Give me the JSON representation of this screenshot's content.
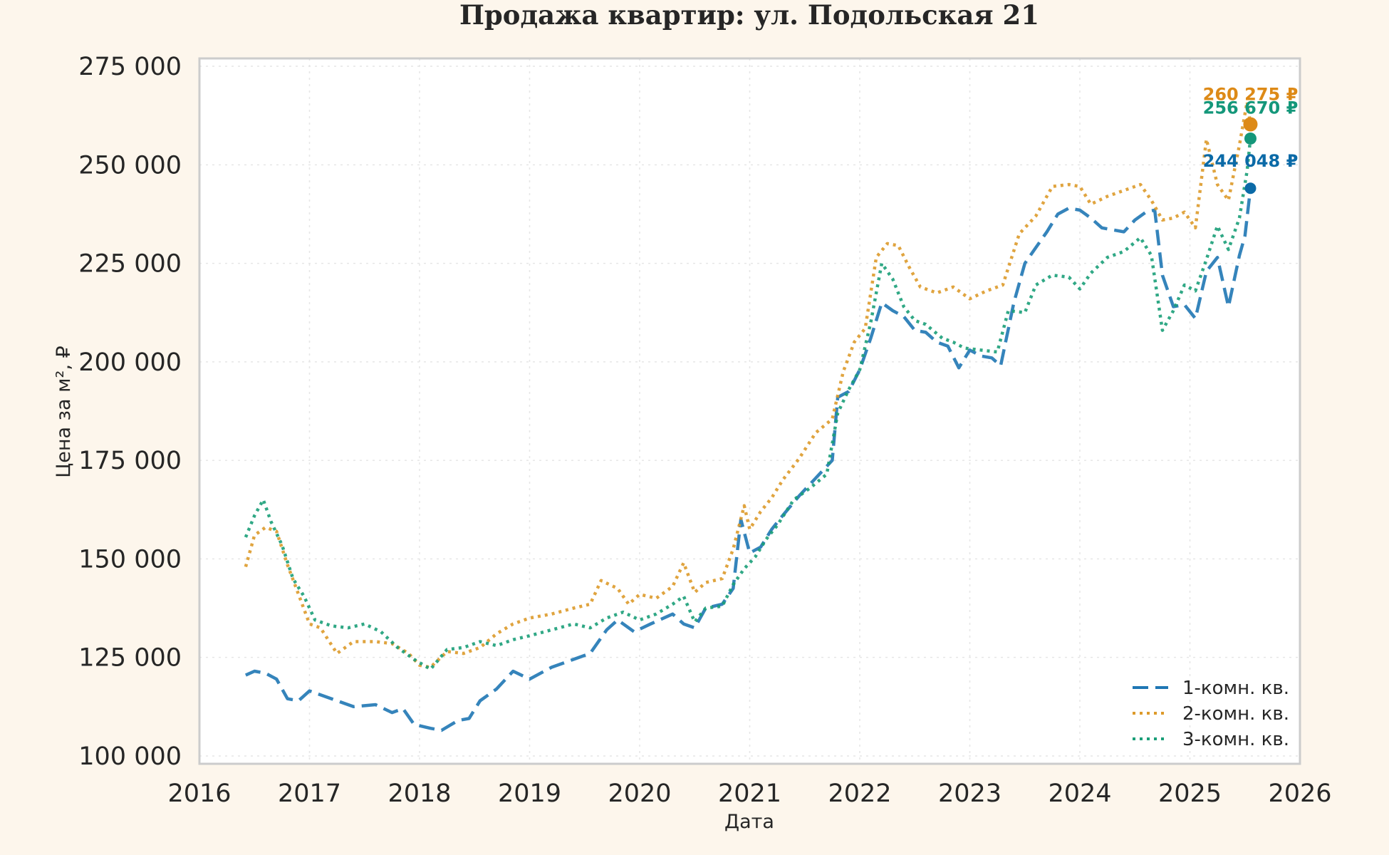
{
  "colors": {
    "background": "#fdf6ec",
    "plot_background": "#ffffff",
    "frame": "#cccccc",
    "series_1": "#1f77b4",
    "series_2": "#dd9a2a",
    "series_3": "#1a9e78",
    "end_1": "#0b6aa7",
    "end_2": "#dd8a17",
    "end_3": "#14977a"
  },
  "chart_data": {
    "type": "line",
    "title": "Продажа квартир: ул. Подольская 21",
    "xlabel": "Дата",
    "ylabel": "Цена за м², ₽",
    "xlim": [
      2016.0,
      2026.0
    ],
    "ylim": [
      98000,
      277000
    ],
    "x_ticks": [
      2016,
      2017,
      2018,
      2019,
      2020,
      2021,
      2022,
      2023,
      2024,
      2025,
      2026
    ],
    "x_tick_labels": [
      "2016",
      "2017",
      "2018",
      "2019",
      "2020",
      "2021",
      "2022",
      "2023",
      "2024",
      "2025",
      "2026"
    ],
    "y_ticks": [
      100000,
      125000,
      150000,
      175000,
      200000,
      225000,
      250000,
      275000
    ],
    "y_tick_labels": [
      "100 000",
      "125 000",
      "150 000",
      "175 000",
      "200 000",
      "225 000",
      "250 000",
      "275 000"
    ],
    "grid": true,
    "legend_position": "bottom-right",
    "series": [
      {
        "name": "1-комн. кв.",
        "style": "dashed",
        "points": [
          [
            2016.42,
            120500
          ],
          [
            2016.5,
            121500
          ],
          [
            2016.6,
            121000
          ],
          [
            2016.7,
            119500
          ],
          [
            2016.8,
            114500
          ],
          [
            2016.9,
            114000
          ],
          [
            2017.0,
            116500
          ],
          [
            2017.2,
            114500
          ],
          [
            2017.4,
            112500
          ],
          [
            2017.6,
            113000
          ],
          [
            2017.75,
            111000
          ],
          [
            2017.85,
            112000
          ],
          [
            2017.95,
            108000
          ],
          [
            2018.1,
            107000
          ],
          [
            2018.2,
            106500
          ],
          [
            2018.35,
            109000
          ],
          [
            2018.45,
            109500
          ],
          [
            2018.55,
            114000
          ],
          [
            2018.7,
            117000
          ],
          [
            2018.85,
            121500
          ],
          [
            2019.0,
            119500
          ],
          [
            2019.2,
            122500
          ],
          [
            2019.4,
            124500
          ],
          [
            2019.55,
            126000
          ],
          [
            2019.7,
            132000
          ],
          [
            2019.8,
            134500
          ],
          [
            2019.95,
            131500
          ],
          [
            2020.1,
            133500
          ],
          [
            2020.3,
            136000
          ],
          [
            2020.4,
            133500
          ],
          [
            2020.5,
            132500
          ],
          [
            2020.6,
            137500
          ],
          [
            2020.75,
            138500
          ],
          [
            2020.85,
            142500
          ],
          [
            2020.92,
            160000
          ],
          [
            2021.0,
            151500
          ],
          [
            2021.1,
            153000
          ],
          [
            2021.2,
            157500
          ],
          [
            2021.3,
            161000
          ],
          [
            2021.45,
            166000
          ],
          [
            2021.6,
            170500
          ],
          [
            2021.75,
            175000
          ],
          [
            2021.8,
            191000
          ],
          [
            2021.9,
            192500
          ],
          [
            2022.0,
            198000
          ],
          [
            2022.1,
            206000
          ],
          [
            2022.2,
            215000
          ],
          [
            2022.3,
            213000
          ],
          [
            2022.4,
            211500
          ],
          [
            2022.5,
            208000
          ],
          [
            2022.6,
            207500
          ],
          [
            2022.7,
            205000
          ],
          [
            2022.8,
            204000
          ],
          [
            2022.9,
            198500
          ],
          [
            2023.0,
            203000
          ],
          [
            2023.1,
            201500
          ],
          [
            2023.2,
            201000
          ],
          [
            2023.28,
            199000
          ],
          [
            2023.4,
            215000
          ],
          [
            2023.5,
            225000
          ],
          [
            2023.6,
            229000
          ],
          [
            2023.7,
            233000
          ],
          [
            2023.8,
            237500
          ],
          [
            2023.9,
            239000
          ],
          [
            2024.0,
            238500
          ],
          [
            2024.1,
            236500
          ],
          [
            2024.2,
            234000
          ],
          [
            2024.3,
            233500
          ],
          [
            2024.4,
            233000
          ],
          [
            2024.5,
            236000
          ],
          [
            2024.6,
            238000
          ],
          [
            2024.68,
            238500
          ],
          [
            2024.75,
            222000
          ],
          [
            2024.85,
            214000
          ],
          [
            2024.95,
            214500
          ],
          [
            2025.05,
            211000
          ],
          [
            2025.15,
            223000
          ],
          [
            2025.25,
            226500
          ],
          [
            2025.35,
            214000
          ],
          [
            2025.45,
            227000
          ],
          [
            2025.5,
            232000
          ],
          [
            2025.55,
            244048
          ]
        ]
      },
      {
        "name": "2-комн. кв.",
        "style": "dotted",
        "points": [
          [
            2016.42,
            148000
          ],
          [
            2016.5,
            156000
          ],
          [
            2016.6,
            158000
          ],
          [
            2016.7,
            157000
          ],
          [
            2016.8,
            148500
          ],
          [
            2016.9,
            141000
          ],
          [
            2017.0,
            133500
          ],
          [
            2017.1,
            132500
          ],
          [
            2017.25,
            126000
          ],
          [
            2017.4,
            129000
          ],
          [
            2017.6,
            129000
          ],
          [
            2017.75,
            128500
          ],
          [
            2017.9,
            126000
          ],
          [
            2018.0,
            123000
          ],
          [
            2018.1,
            122500
          ],
          [
            2018.25,
            126500
          ],
          [
            2018.4,
            126000
          ],
          [
            2018.55,
            127500
          ],
          [
            2018.7,
            131000
          ],
          [
            2018.85,
            133500
          ],
          [
            2019.0,
            135000
          ],
          [
            2019.2,
            136000
          ],
          [
            2019.4,
            137500
          ],
          [
            2019.55,
            138500
          ],
          [
            2019.65,
            144500
          ],
          [
            2019.8,
            142500
          ],
          [
            2019.9,
            138500
          ],
          [
            2020.0,
            141000
          ],
          [
            2020.15,
            140000
          ],
          [
            2020.3,
            143000
          ],
          [
            2020.4,
            149000
          ],
          [
            2020.5,
            141500
          ],
          [
            2020.6,
            144000
          ],
          [
            2020.75,
            145000
          ],
          [
            2020.85,
            152500
          ],
          [
            2020.95,
            163500
          ],
          [
            2021.0,
            157500
          ],
          [
            2021.1,
            162000
          ],
          [
            2021.2,
            165500
          ],
          [
            2021.3,
            170000
          ],
          [
            2021.45,
            175500
          ],
          [
            2021.6,
            182000
          ],
          [
            2021.75,
            185500
          ],
          [
            2021.85,
            197500
          ],
          [
            2021.95,
            205000
          ],
          [
            2022.05,
            208500
          ],
          [
            2022.15,
            226500
          ],
          [
            2022.25,
            230000
          ],
          [
            2022.35,
            229500
          ],
          [
            2022.45,
            224000
          ],
          [
            2022.55,
            219000
          ],
          [
            2022.7,
            217500
          ],
          [
            2022.85,
            219000
          ],
          [
            2023.0,
            216000
          ],
          [
            2023.15,
            218000
          ],
          [
            2023.3,
            219500
          ],
          [
            2023.45,
            232500
          ],
          [
            2023.6,
            237000
          ],
          [
            2023.75,
            244500
          ],
          [
            2023.9,
            245000
          ],
          [
            2024.0,
            244500
          ],
          [
            2024.1,
            240000
          ],
          [
            2024.25,
            242000
          ],
          [
            2024.4,
            243500
          ],
          [
            2024.55,
            245000
          ],
          [
            2024.65,
            241000
          ],
          [
            2024.75,
            236000
          ],
          [
            2024.85,
            236500
          ],
          [
            2024.95,
            238000
          ],
          [
            2025.05,
            234000
          ],
          [
            2025.15,
            256500
          ],
          [
            2025.25,
            245000
          ],
          [
            2025.35,
            241000
          ],
          [
            2025.45,
            255000
          ],
          [
            2025.52,
            266000
          ],
          [
            2025.55,
            260275
          ]
        ]
      },
      {
        "name": "3-комн. кв.",
        "style": "dotted",
        "points": [
          [
            2016.42,
            155500
          ],
          [
            2016.5,
            161000
          ],
          [
            2016.58,
            165000
          ],
          [
            2016.65,
            159500
          ],
          [
            2016.75,
            153500
          ],
          [
            2016.85,
            145000
          ],
          [
            2016.95,
            140500
          ],
          [
            2017.05,
            134500
          ],
          [
            2017.2,
            133000
          ],
          [
            2017.35,
            132500
          ],
          [
            2017.5,
            133500
          ],
          [
            2017.65,
            131500
          ],
          [
            2017.8,
            127500
          ],
          [
            2017.95,
            124500
          ],
          [
            2018.1,
            122000
          ],
          [
            2018.25,
            127000
          ],
          [
            2018.4,
            127500
          ],
          [
            2018.55,
            129000
          ],
          [
            2018.7,
            128000
          ],
          [
            2018.85,
            129500
          ],
          [
            2019.0,
            130500
          ],
          [
            2019.2,
            132000
          ],
          [
            2019.4,
            133500
          ],
          [
            2019.55,
            132500
          ],
          [
            2019.7,
            135000
          ],
          [
            2019.85,
            136500
          ],
          [
            2020.0,
            134500
          ],
          [
            2020.15,
            136000
          ],
          [
            2020.3,
            138500
          ],
          [
            2020.4,
            140500
          ],
          [
            2020.5,
            134000
          ],
          [
            2020.6,
            137500
          ],
          [
            2020.75,
            138000
          ],
          [
            2020.85,
            143500
          ],
          [
            2020.95,
            147500
          ],
          [
            2021.05,
            150500
          ],
          [
            2021.15,
            155000
          ],
          [
            2021.25,
            158500
          ],
          [
            2021.4,
            165000
          ],
          [
            2021.55,
            168000
          ],
          [
            2021.7,
            171500
          ],
          [
            2021.8,
            187000
          ],
          [
            2021.9,
            193000
          ],
          [
            2022.0,
            198000
          ],
          [
            2022.1,
            210000
          ],
          [
            2022.2,
            225000
          ],
          [
            2022.3,
            221000
          ],
          [
            2022.4,
            214000
          ],
          [
            2022.5,
            210500
          ],
          [
            2022.6,
            209500
          ],
          [
            2022.75,
            206000
          ],
          [
            2022.85,
            205000
          ],
          [
            2022.95,
            203500
          ],
          [
            2023.1,
            203000
          ],
          [
            2023.25,
            202500
          ],
          [
            2023.35,
            213000
          ],
          [
            2023.5,
            212500
          ],
          [
            2023.6,
            219500
          ],
          [
            2023.75,
            222000
          ],
          [
            2023.9,
            221500
          ],
          [
            2024.0,
            218500
          ],
          [
            2024.1,
            222500
          ],
          [
            2024.25,
            226500
          ],
          [
            2024.4,
            228000
          ],
          [
            2024.55,
            231500
          ],
          [
            2024.65,
            227000
          ],
          [
            2024.75,
            208000
          ],
          [
            2024.85,
            213000
          ],
          [
            2024.95,
            219500
          ],
          [
            2025.05,
            218000
          ],
          [
            2025.15,
            226000
          ],
          [
            2025.25,
            234500
          ],
          [
            2025.35,
            228500
          ],
          [
            2025.45,
            236500
          ],
          [
            2025.52,
            248500
          ],
          [
            2025.55,
            256670
          ]
        ]
      }
    ],
    "end_labels": [
      {
        "series": "2-комн. кв.",
        "x": 2025.55,
        "value": 260275,
        "text": "260 275 ₽"
      },
      {
        "series": "3-комн. кв.",
        "x": 2025.55,
        "value": 256670,
        "text": "256 670 ₽"
      },
      {
        "series": "1-комн. кв.",
        "x": 2025.55,
        "value": 244048,
        "text": "244 048 ₽"
      }
    ]
  }
}
